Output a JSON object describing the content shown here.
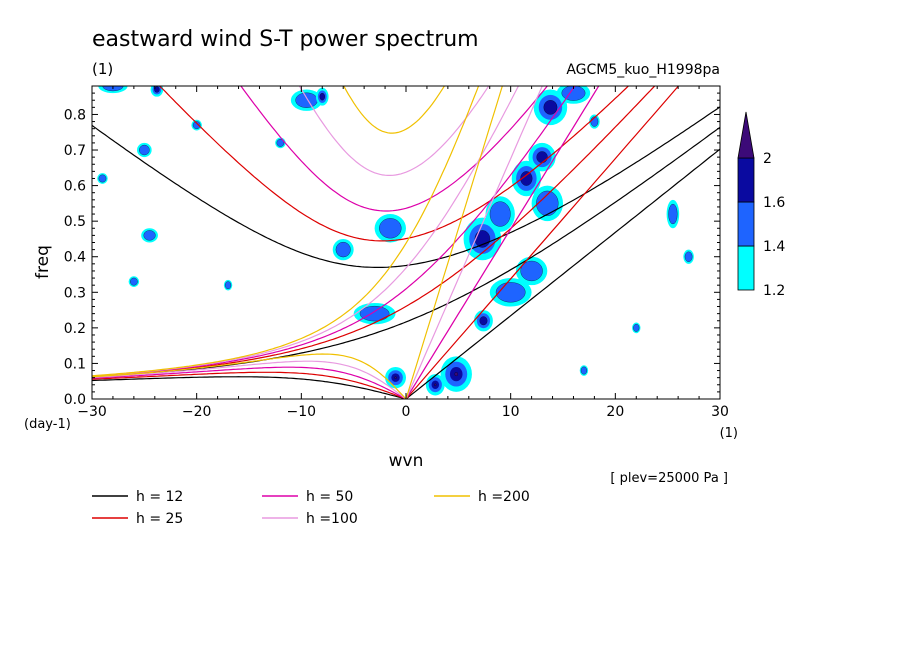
{
  "chart_data": {
    "type": "contour",
    "title": "eastward wind S-T power spectrum",
    "title_unit": "(1)",
    "run_label": "AGCM5_kuo_H1998pa",
    "xlabel": "wvn",
    "x_unit": "(1)",
    "ylabel": "freq",
    "y_unit": "(day-1)",
    "xlim": [
      -30,
      30
    ],
    "ylim": [
      0.0,
      0.88
    ],
    "x_ticks": [
      -30,
      -20,
      -10,
      0,
      10,
      20,
      30
    ],
    "y_ticks": [
      0.0,
      0.1,
      0.2,
      0.3,
      0.4,
      0.5,
      0.6,
      0.7,
      0.8
    ],
    "grid": false,
    "level_note": "[ plev=25000 Pa ]",
    "colorbar": {
      "levels": [
        1.2,
        1.4,
        1.6,
        2
      ],
      "labels": [
        "1.2",
        "1.4",
        "1.6",
        "2"
      ],
      "colors": [
        "#00ffff",
        "#1e64ff",
        "#0a0aa0",
        "#3c0a78"
      ]
    },
    "dispersion_curves": [
      {
        "name": "h = 12",
        "h": 12,
        "color": "#000000"
      },
      {
        "name": "h = 25",
        "h": 25,
        "color": "#dd0000"
      },
      {
        "name": "h = 50",
        "h": 50,
        "color": "#dd00aa"
      },
      {
        "name": "h =100",
        "h": 100,
        "color": "#e89ae0"
      },
      {
        "name": "h =200",
        "h": 200,
        "color": "#f0c000"
      }
    ],
    "power_patches": [
      {
        "x": 4.8,
        "y": 0.07,
        "rx": 1.5,
        "ry": 0.05,
        "level": 3
      },
      {
        "x": 2.8,
        "y": 0.04,
        "rx": 0.9,
        "ry": 0.03,
        "level": 3
      },
      {
        "x": -1.0,
        "y": 0.06,
        "rx": 1.0,
        "ry": 0.03,
        "level": 3
      },
      {
        "x": 7.4,
        "y": 0.22,
        "rx": 0.9,
        "ry": 0.03,
        "level": 2
      },
      {
        "x": 7.3,
        "y": 0.45,
        "rx": 1.8,
        "ry": 0.06,
        "level": 2
      },
      {
        "x": 9.0,
        "y": 0.52,
        "rx": 1.4,
        "ry": 0.05,
        "level": 1
      },
      {
        "x": 11.5,
        "y": 0.62,
        "rx": 1.4,
        "ry": 0.05,
        "level": 2
      },
      {
        "x": 13.0,
        "y": 0.68,
        "rx": 1.3,
        "ry": 0.04,
        "level": 2
      },
      {
        "x": 13.8,
        "y": 0.82,
        "rx": 1.6,
        "ry": 0.05,
        "level": 2
      },
      {
        "x": 16.0,
        "y": 0.86,
        "rx": 1.6,
        "ry": 0.03,
        "level": 1
      },
      {
        "x": 10.0,
        "y": 0.3,
        "rx": 2.0,
        "ry": 0.04,
        "level": 1
      },
      {
        "x": 12.0,
        "y": 0.36,
        "rx": 1.5,
        "ry": 0.04,
        "level": 1
      },
      {
        "x": 13.5,
        "y": 0.55,
        "rx": 1.5,
        "ry": 0.05,
        "level": 1
      },
      {
        "x": -9.5,
        "y": 0.84,
        "rx": 1.5,
        "ry": 0.03,
        "level": 1
      },
      {
        "x": -8.0,
        "y": 0.85,
        "rx": 0.6,
        "ry": 0.025,
        "level": 2
      },
      {
        "x": -23.8,
        "y": 0.87,
        "rx": 0.6,
        "ry": 0.02,
        "level": 2
      },
      {
        "x": -28.0,
        "y": 0.88,
        "rx": 1.4,
        "ry": 0.02,
        "level": 1
      },
      {
        "x": -24.5,
        "y": 0.46,
        "rx": 0.8,
        "ry": 0.02,
        "level": 1
      },
      {
        "x": -25.0,
        "y": 0.7,
        "rx": 0.7,
        "ry": 0.02,
        "level": 1
      },
      {
        "x": -3.0,
        "y": 0.24,
        "rx": 2.0,
        "ry": 0.03,
        "level": 1
      },
      {
        "x": -1.5,
        "y": 0.48,
        "rx": 1.5,
        "ry": 0.04,
        "level": 1
      },
      {
        "x": -6.0,
        "y": 0.42,
        "rx": 1.0,
        "ry": 0.03,
        "level": 1
      },
      {
        "x": 25.5,
        "y": 0.52,
        "rx": 0.6,
        "ry": 0.04,
        "level": 1
      },
      {
        "x": 27.0,
        "y": 0.4,
        "rx": 0.5,
        "ry": 0.02,
        "level": 1
      },
      {
        "x": -17.0,
        "y": 0.32,
        "rx": 0.4,
        "ry": 0.015,
        "level": 1
      },
      {
        "x": -26.0,
        "y": 0.33,
        "rx": 0.5,
        "ry": 0.015,
        "level": 1
      },
      {
        "x": -12.0,
        "y": 0.72,
        "rx": 0.5,
        "ry": 0.015,
        "level": 1
      },
      {
        "x": -20.0,
        "y": 0.77,
        "rx": 0.5,
        "ry": 0.015,
        "level": 1
      },
      {
        "x": -29.0,
        "y": 0.62,
        "rx": 0.5,
        "ry": 0.015,
        "level": 1
      },
      {
        "x": 18.0,
        "y": 0.78,
        "rx": 0.5,
        "ry": 0.02,
        "level": 1
      },
      {
        "x": 22.0,
        "y": 0.2,
        "rx": 0.4,
        "ry": 0.015,
        "level": 1
      },
      {
        "x": 17.0,
        "y": 0.08,
        "rx": 0.4,
        "ry": 0.015,
        "level": 1
      }
    ]
  }
}
